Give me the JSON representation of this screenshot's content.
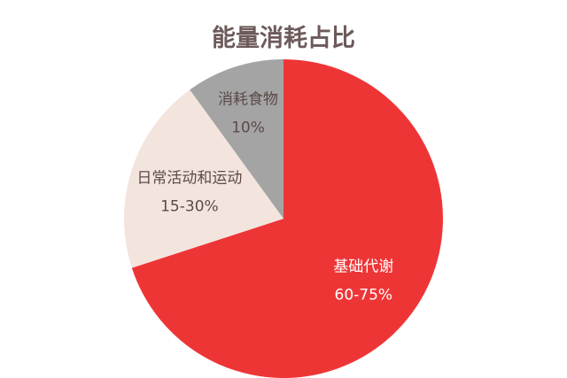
{
  "chart_data": {
    "type": "pie",
    "title": "能量消耗占比",
    "slices": [
      {
        "label": "基础代谢",
        "value_text": "60-75%",
        "value": 70,
        "color": "#ee3536",
        "text_color": "#ffffff"
      },
      {
        "label": "日常活动和运动",
        "value_text": "15-30%",
        "value": 20,
        "color": "#f3e5de",
        "text_color": "#5c4a4a"
      },
      {
        "label": "消耗食物",
        "value_text": "10%",
        "value": 10,
        "color": "#a4a4a4",
        "text_color": "#5c4a4a"
      }
    ],
    "start_angle_deg": 0,
    "direction": "clockwise",
    "legend": "none"
  }
}
